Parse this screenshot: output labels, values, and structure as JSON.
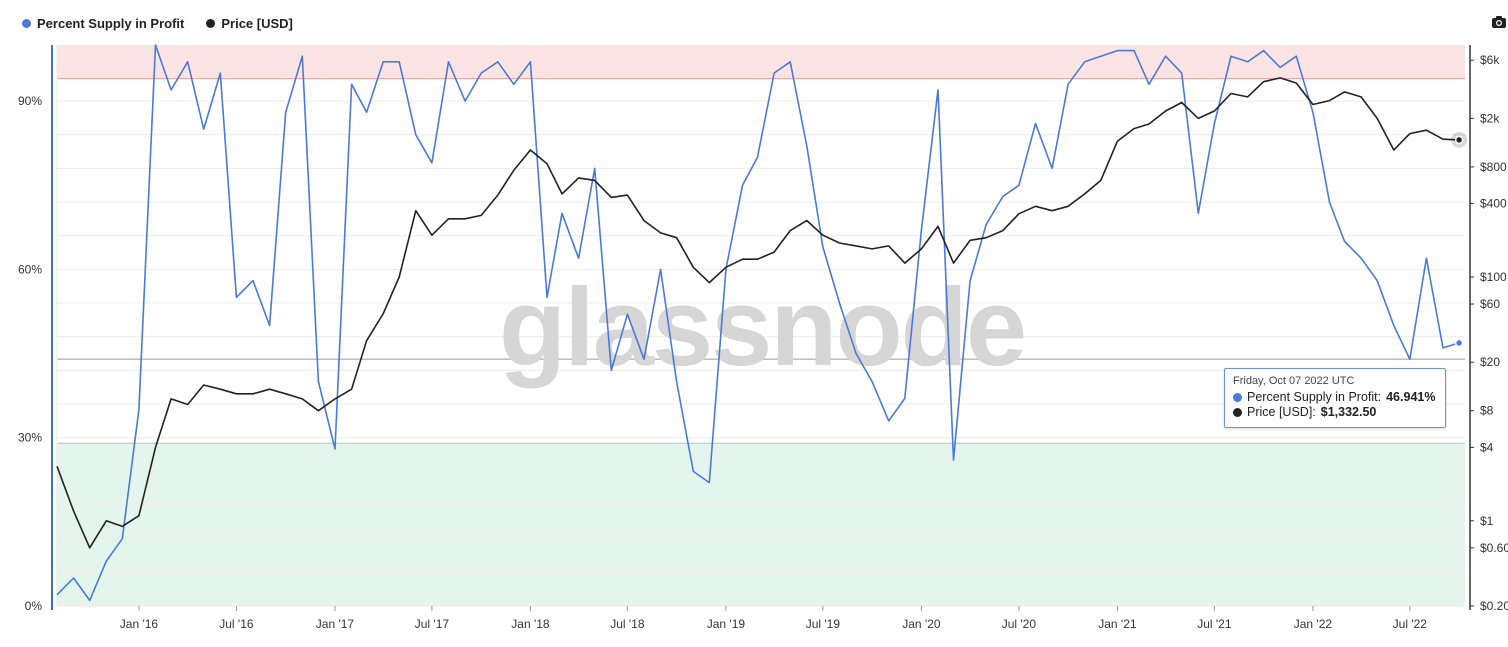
{
  "legend": {
    "items": [
      {
        "label": "Percent Supply in Profit",
        "color": "#4a7ad8"
      },
      {
        "label": "Price [USD]",
        "color": "#222222"
      }
    ]
  },
  "watermark": "glassnode",
  "tooltip": {
    "date": "Friday, Oct 07 2022 UTC",
    "supply_label": "Percent Supply in Profit:",
    "supply_value": "46.941%",
    "price_label": "Price [USD]:",
    "price_value": "$1,332.50"
  },
  "chart_data": {
    "type": "line",
    "x_ticks": [
      "Jan '16",
      "Jul '16",
      "Jan '17",
      "Jul '17",
      "Jan '18",
      "Jul '18",
      "Jan '19",
      "Jul '19",
      "Jan '20",
      "Jul '20",
      "Jan '21",
      "Jul '21",
      "Jan '22",
      "Jul '22"
    ],
    "y_left_ticks": [
      "0%",
      "30%",
      "60%",
      "90%"
    ],
    "y_right_ticks": [
      "$0.20",
      "$0.60",
      "$1",
      "$4",
      "$8",
      "$20",
      "$60",
      "$100",
      "$400",
      "$800",
      "$2k",
      "$6k"
    ],
    "y_left_range": [
      0,
      100
    ],
    "y_right_scale": "log",
    "y_right_range": [
      0.2,
      8000
    ],
    "bands": [
      {
        "from": 94,
        "to": 100,
        "color": "#fde4e4"
      },
      {
        "from": 0,
        "to": 29,
        "color": "#e4f5ee"
      }
    ],
    "reference_line": 44,
    "series": [
      {
        "name": "Percent Supply in Profit",
        "axis": "left",
        "color": "#4a7ad8",
        "x": [
          "2015-08",
          "2015-09",
          "2015-10",
          "2015-11",
          "2015-12",
          "2016-01",
          "2016-02",
          "2016-03",
          "2016-04",
          "2016-05",
          "2016-06",
          "2016-07",
          "2016-08",
          "2016-09",
          "2016-10",
          "2016-11",
          "2016-12",
          "2017-01",
          "2017-02",
          "2017-03",
          "2017-04",
          "2017-05",
          "2017-06",
          "2017-07",
          "2017-08",
          "2017-09",
          "2017-10",
          "2017-11",
          "2017-12",
          "2018-01",
          "2018-02",
          "2018-03",
          "2018-04",
          "2018-05",
          "2018-06",
          "2018-07",
          "2018-08",
          "2018-09",
          "2018-10",
          "2018-11",
          "2018-12",
          "2019-01",
          "2019-02",
          "2019-03",
          "2019-04",
          "2019-05",
          "2019-06",
          "2019-07",
          "2019-08",
          "2019-09",
          "2019-10",
          "2019-11",
          "2019-12",
          "2020-01",
          "2020-02",
          "2020-03",
          "2020-04",
          "2020-05",
          "2020-06",
          "2020-07",
          "2020-08",
          "2020-09",
          "2020-10",
          "2020-11",
          "2020-12",
          "2021-01",
          "2021-02",
          "2021-03",
          "2021-04",
          "2021-05",
          "2021-06",
          "2021-07",
          "2021-08",
          "2021-09",
          "2021-10",
          "2021-11",
          "2021-12",
          "2022-01",
          "2022-02",
          "2022-03",
          "2022-04",
          "2022-05",
          "2022-06",
          "2022-07",
          "2022-08",
          "2022-09",
          "2022-10"
        ],
        "values": [
          2,
          5,
          1,
          8,
          12,
          35,
          100,
          92,
          97,
          85,
          95,
          55,
          58,
          50,
          88,
          98,
          40,
          28,
          93,
          88,
          97,
          97,
          84,
          79,
          97,
          90,
          95,
          97,
          93,
          97,
          55,
          70,
          62,
          78,
          42,
          52,
          44,
          60,
          40,
          24,
          22,
          60,
          75,
          80,
          95,
          97,
          82,
          64,
          54,
          45,
          40,
          33,
          37,
          67,
          92,
          26,
          58,
          68,
          73,
          75,
          86,
          78,
          93,
          97,
          98,
          99,
          99,
          93,
          98,
          95,
          70,
          86,
          98,
          97,
          99,
          96,
          98,
          88,
          72,
          65,
          62,
          58,
          50,
          44,
          62,
          46,
          46.9
        ]
      },
      {
        "name": "Price [USD]",
        "axis": "right",
        "color": "#222222",
        "x": [
          "2015-08",
          "2015-09",
          "2015-10",
          "2015-11",
          "2015-12",
          "2016-01",
          "2016-02",
          "2016-03",
          "2016-04",
          "2016-05",
          "2016-06",
          "2016-07",
          "2016-08",
          "2016-09",
          "2016-10",
          "2016-11",
          "2016-12",
          "2017-01",
          "2017-02",
          "2017-03",
          "2017-04",
          "2017-05",
          "2017-06",
          "2017-07",
          "2017-08",
          "2017-09",
          "2017-10",
          "2017-11",
          "2017-12",
          "2018-01",
          "2018-02",
          "2018-03",
          "2018-04",
          "2018-05",
          "2018-06",
          "2018-07",
          "2018-08",
          "2018-09",
          "2018-10",
          "2018-11",
          "2018-12",
          "2019-01",
          "2019-02",
          "2019-03",
          "2019-04",
          "2019-05",
          "2019-06",
          "2019-07",
          "2019-08",
          "2019-09",
          "2019-10",
          "2019-11",
          "2019-12",
          "2020-01",
          "2020-02",
          "2020-03",
          "2020-04",
          "2020-05",
          "2020-06",
          "2020-07",
          "2020-08",
          "2020-09",
          "2020-10",
          "2020-11",
          "2020-12",
          "2021-01",
          "2021-02",
          "2021-03",
          "2021-04",
          "2021-05",
          "2021-06",
          "2021-07",
          "2021-08",
          "2021-09",
          "2021-10",
          "2021-11",
          "2021-12",
          "2022-01",
          "2022-02",
          "2022-03",
          "2022-04",
          "2022-05",
          "2022-06",
          "2022-07",
          "2022-08",
          "2022-09",
          "2022-10"
        ],
        "values": [
          2.8,
          1.2,
          0.6,
          1.0,
          0.9,
          1.1,
          4,
          10,
          9,
          13,
          12,
          11,
          11,
          12,
          11,
          10,
          8,
          10,
          12,
          30,
          50,
          100,
          350,
          220,
          300,
          300,
          320,
          470,
          750,
          1100,
          850,
          480,
          650,
          620,
          450,
          470,
          290,
          230,
          210,
          120,
          90,
          120,
          140,
          140,
          160,
          240,
          290,
          220,
          190,
          180,
          170,
          180,
          130,
          170,
          260,
          130,
          200,
          210,
          240,
          330,
          380,
          350,
          380,
          480,
          620,
          1300,
          1650,
          1800,
          2300,
          2700,
          2000,
          2300,
          3200,
          3000,
          4000,
          4300,
          3900,
          2600,
          2800,
          3300,
          3000,
          2000,
          1100,
          1500,
          1600,
          1350,
          1332.5
        ]
      }
    ]
  }
}
